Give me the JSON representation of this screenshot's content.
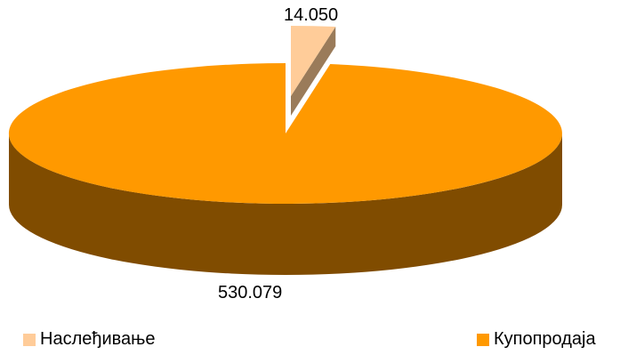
{
  "chart_data": {
    "type": "pie",
    "title": "",
    "labels": [
      "Наслеђивање",
      "Купопродаја"
    ],
    "values": [
      14050,
      530079
    ],
    "value_labels": [
      "14.050",
      "530.079"
    ],
    "colors": [
      "#FFCC99",
      "#FF9900"
    ],
    "side_colors": [
      "#9A7B5A",
      "#804C00"
    ],
    "legend_position": "bottom",
    "three_d": true,
    "exploded_slice": "Наслеђивање"
  }
}
